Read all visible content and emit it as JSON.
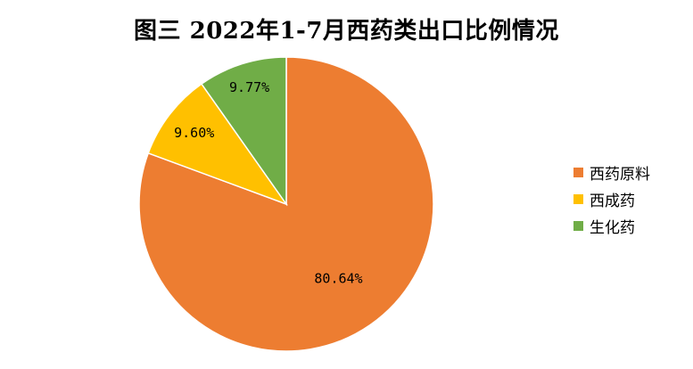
{
  "chart_data": {
    "type": "pie",
    "title": "图三  2022年1-7月西药类出口比例情况",
    "legend_position": "right",
    "slices": [
      {
        "name": "西药原料",
        "value": 80.64,
        "label": "80.64%",
        "color": "#ED7D31"
      },
      {
        "name": "西成药",
        "value": 9.6,
        "label": "9.60%",
        "color": "#FFC000"
      },
      {
        "name": "生化药",
        "value": 9.77,
        "label": "9.77%",
        "color": "#70AD47"
      }
    ]
  }
}
